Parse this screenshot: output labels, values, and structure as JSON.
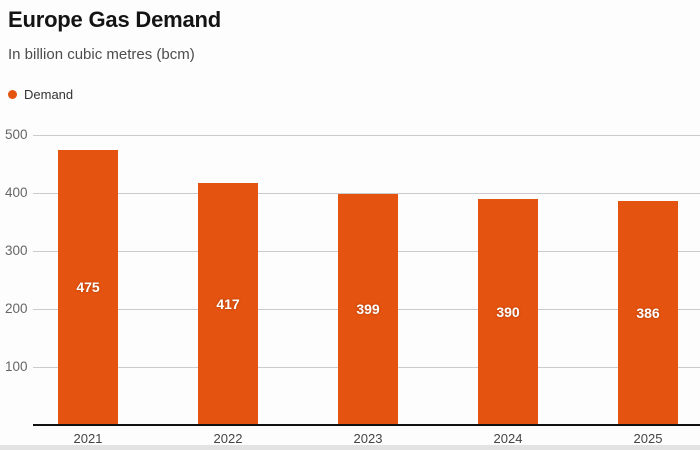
{
  "header": {
    "title": "Europe Gas Demand",
    "subtitle": "In billion cubic metres (bcm)"
  },
  "legend": {
    "items": [
      {
        "label": "Demand",
        "color": "#E4530F"
      }
    ]
  },
  "chart_data": {
    "type": "bar",
    "categories": [
      "2021",
      "2022",
      "2023",
      "2024",
      "2025"
    ],
    "series": [
      {
        "name": "Demand",
        "values": [
          475,
          417,
          399,
          390,
          386
        ]
      }
    ],
    "title": "Europe Gas Demand",
    "xlabel": "",
    "ylabel": "In billion cubic metres (bcm)",
    "ylim": [
      0,
      500
    ],
    "yticks": [
      100,
      200,
      300,
      400,
      500
    ],
    "grid": true,
    "legend_position": "top-left",
    "value_labels": true
  },
  "colors": {
    "bar": "#E4530F",
    "gridline": "#cbcbcb",
    "axis": "#111111",
    "title_text": "#141414",
    "subtitle_text": "#4d4d4d",
    "tick_text": "#666666",
    "background": "#fdfdfd"
  }
}
